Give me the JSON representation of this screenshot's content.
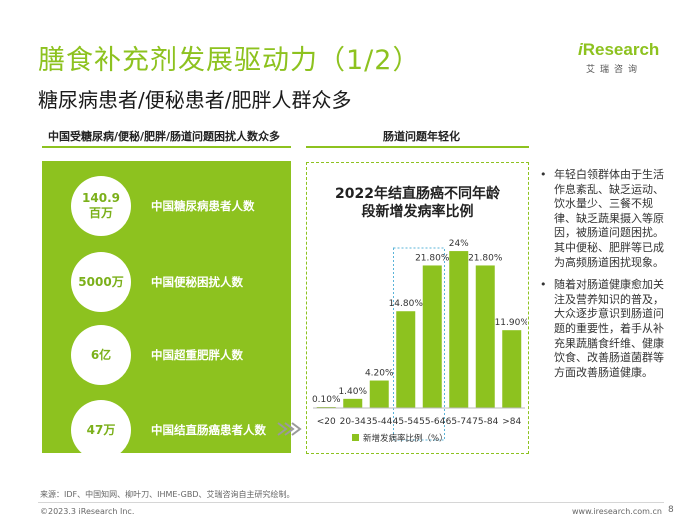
{
  "header": {
    "title": "膳食补充剂发展驱动力（1/2）",
    "subtitle": "糖尿病患者/便秘患者/肥胖人群众多"
  },
  "logo": {
    "word_prefix": "i",
    "word_rest": "Research",
    "cn": "艾瑞咨询"
  },
  "left_section": {
    "heading": "中国受糖尿病/便秘/肥胖/肠道问题困扰人数众多",
    "stats": [
      {
        "value_line1": "140.9",
        "value_line2": "百万",
        "label": "中国糖尿病患者人数"
      },
      {
        "value_line1": "5000万",
        "value_line2": "",
        "label": "中国便秘困扰人数"
      },
      {
        "value_line1": "6亿",
        "value_line2": "",
        "label": "中国超重肥胖人数"
      },
      {
        "value_line1": "47万",
        "value_line2": "",
        "label": "中国结直肠癌患者人数"
      }
    ]
  },
  "right_section": {
    "heading": "肠道问题年轻化"
  },
  "chart_data": {
    "type": "bar",
    "title_line1": "2022年结直肠癌不同年龄",
    "title_line2": "段新增发病率比例",
    "categories": [
      "<20",
      "20-34",
      "35-44",
      "45-54",
      "55-64",
      "65-74",
      "75-84",
      ">84"
    ],
    "values": [
      0.1,
      1.4,
      4.2,
      14.8,
      21.8,
      24,
      21.8,
      11.9
    ],
    "value_labels": [
      "0.10%",
      "1.40%",
      "4.20%",
      "14.80%",
      "21.80%",
      "24%",
      "21.80%",
      "11.90%"
    ],
    "series": [
      {
        "name": "新增发病率比例（%）",
        "values": [
          0.1,
          1.4,
          4.2,
          14.8,
          21.8,
          24,
          21.8,
          11.9
        ]
      }
    ],
    "ylim": [
      0,
      26
    ],
    "highlight_categories": [
      "45-54",
      "55-64"
    ],
    "bar_color": "#8dc21f",
    "highlight_color": "#5ab4d8",
    "legend_position": "bottom"
  },
  "bullets": [
    "年轻白领群体由于生活作息紊乱、缺乏运动、饮水量少、三餐不规律、缺乏蔬果摄入等原因，被肠道问题困扰。其中便秘、肥胖等已成为高频肠道困扰现象。",
    "随着对肠道健康愈加关注及营养知识的普及，大众逐步意识到肠道问题的重要性，着手从补充果蔬膳食纤维、健康饮食、改善肠道菌群等方面改善肠道健康。"
  ],
  "footer": {
    "source": "来源：IDF、中国知网、柳叶刀、IHME-GBD、艾瑞咨询自主研究绘制。",
    "copyright": "©2023.3 iResearch Inc.",
    "website": "www.iresearch.com.cn",
    "page": "8"
  }
}
